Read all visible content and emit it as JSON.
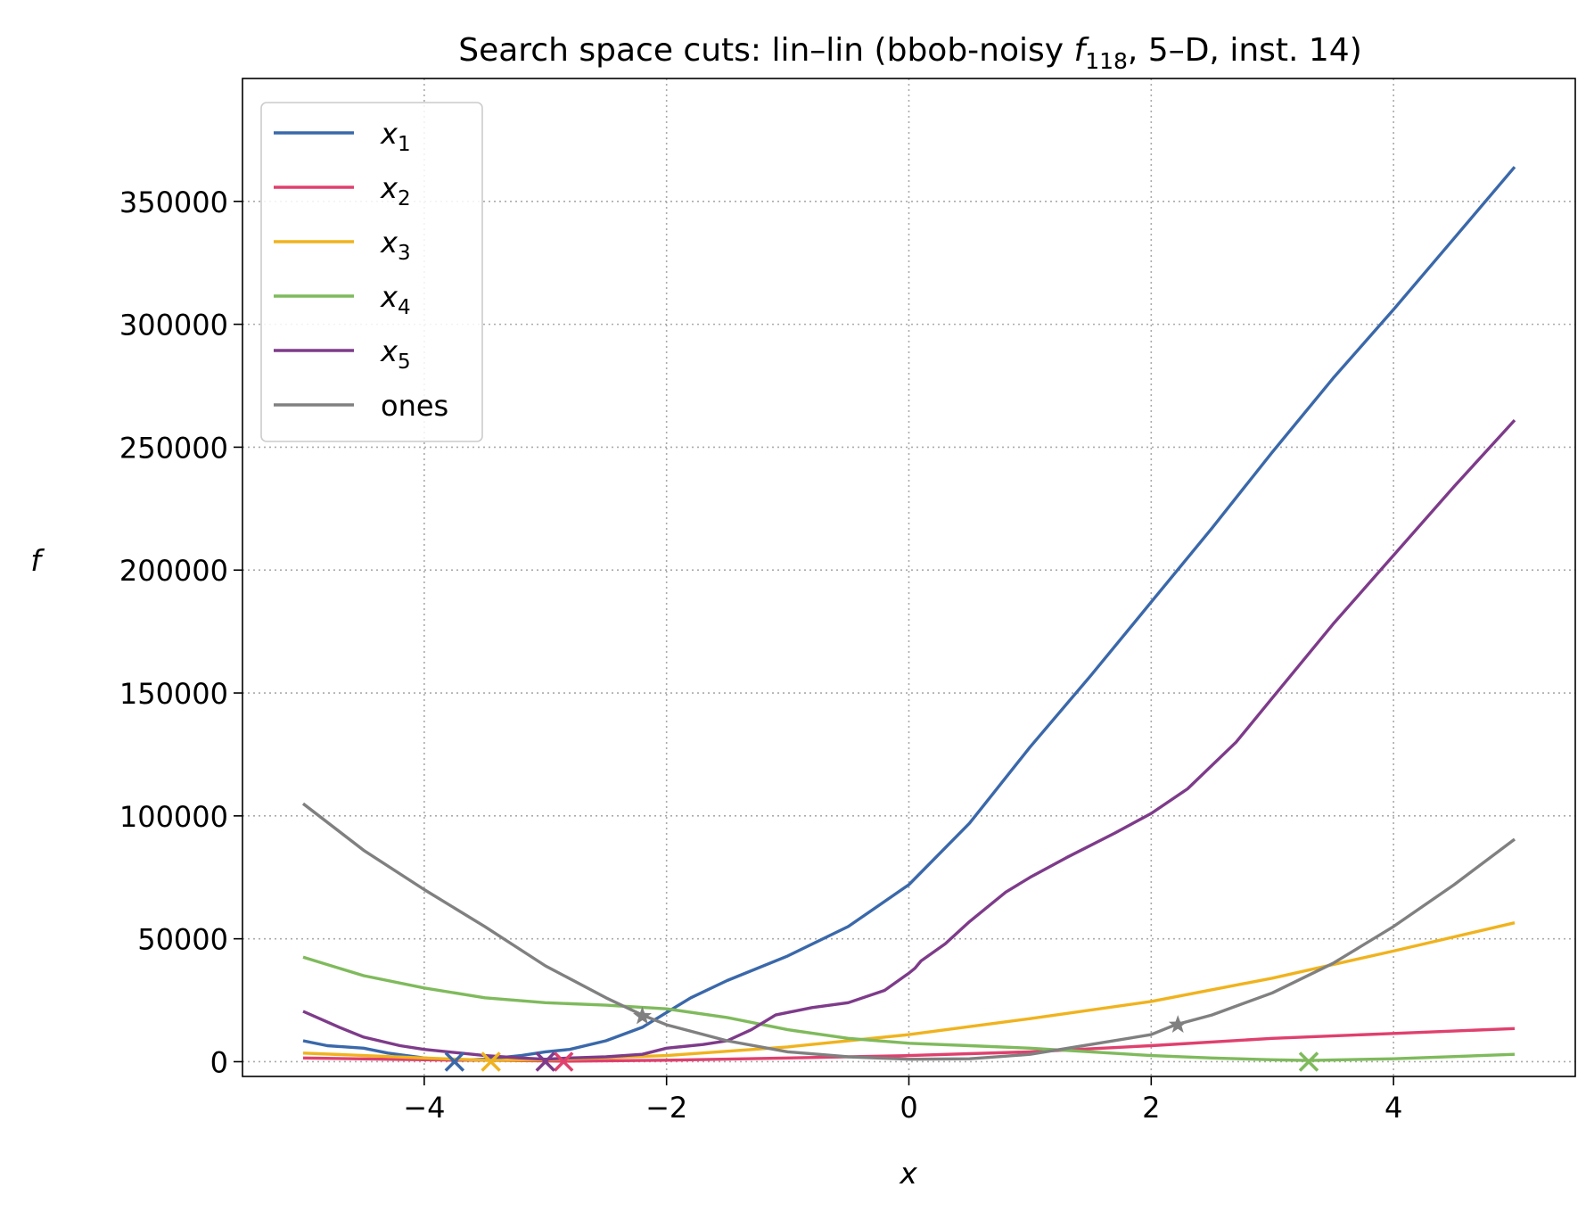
{
  "chart_data": {
    "type": "line",
    "title": {
      "prefix": "Search space cuts: lin–lin (bbob-noisy ",
      "f": "f",
      "sub": "118",
      "suffix": ", 5–D, inst. 14)"
    },
    "xlabel": "x",
    "ylabel": "f",
    "xlim": [
      -5.5,
      5.5
    ],
    "ylim": [
      -6000,
      400000
    ],
    "xticks": [
      -4,
      -2,
      0,
      2,
      4
    ],
    "xtick_labels": [
      "−4",
      "−2",
      "0",
      "2",
      "4"
    ],
    "yticks": [
      0,
      50000,
      100000,
      150000,
      200000,
      250000,
      300000,
      350000
    ],
    "ytick_labels": [
      "0",
      "50000",
      "100000",
      "150000",
      "200000",
      "250000",
      "300000",
      "350000"
    ],
    "grid": true,
    "legend": "upper-left",
    "series": [
      {
        "name": "x",
        "sub": "1",
        "color": "#3a68aa",
        "x": [
          -5,
          -4.8,
          -4.5,
          -4.3,
          -4,
          -3.75,
          -3.5,
          -3.2,
          -3,
          -2.8,
          -2.5,
          -2.2,
          -2,
          -1.8,
          -1.5,
          -1,
          -0.5,
          0,
          0.5,
          1,
          1.5,
          2,
          2.5,
          3,
          3.5,
          4,
          4.5,
          5
        ],
        "y": [
          8500,
          6500,
          5500,
          3500,
          1500,
          500,
          1000,
          2500,
          4000,
          5000,
          8500,
          14000,
          20000,
          26000,
          33000,
          43000,
          55000,
          72000,
          97000,
          128000,
          157000,
          187000,
          217000,
          248000,
          278000,
          306000,
          335000,
          364000
        ],
        "marker_x": -3.75,
        "marker_y": 0,
        "marker": "x"
      },
      {
        "name": "x",
        "sub": "2",
        "color": "#e0406e",
        "x": [
          -5,
          -4,
          -3,
          -2.85,
          -2,
          -1,
          0,
          1,
          2,
          3,
          4,
          5
        ],
        "y": [
          1500,
          800,
          300,
          200,
          600,
          1500,
          2500,
          4000,
          6500,
          9500,
          11500,
          13500
        ],
        "marker_x": -2.85,
        "marker_y": 0,
        "marker": "x"
      },
      {
        "name": "x",
        "sub": "3",
        "color": "#f0b31e",
        "x": [
          -5,
          -4,
          -3.45,
          -3,
          -2,
          -1,
          0,
          1,
          2,
          3,
          4,
          5
        ],
        "y": [
          3500,
          1500,
          500,
          800,
          2500,
          6000,
          11000,
          17500,
          24500,
          34000,
          45000,
          56500
        ],
        "marker_x": -3.45,
        "marker_y": 0,
        "marker": "x"
      },
      {
        "name": "x",
        "sub": "4",
        "color": "#7fba5c",
        "x": [
          -5,
          -4.5,
          -4,
          -3.5,
          -3,
          -2.5,
          -2,
          -1.5,
          -1,
          -0.5,
          0,
          0.5,
          1,
          1.5,
          2,
          2.5,
          3,
          3.3,
          4,
          5
        ],
        "y": [
          42500,
          35000,
          30000,
          26000,
          24000,
          23000,
          21500,
          18000,
          13000,
          9500,
          7500,
          6500,
          5500,
          4000,
          2500,
          1500,
          800,
          500,
          1200,
          3000
        ],
        "marker_x": 3.3,
        "marker_y": 0,
        "marker": "x"
      },
      {
        "name": "x",
        "sub": "5",
        "color": "#7e3b8a",
        "x": [
          -5,
          -4.7,
          -4.5,
          -4.2,
          -4,
          -3.7,
          -3.5,
          -3.2,
          -3,
          -2.8,
          -2.5,
          -2.2,
          -2,
          -1.7,
          -1.5,
          -1.3,
          -1.1,
          -0.8,
          -0.5,
          -0.2,
          0,
          0.05,
          0.1,
          0.3,
          0.5,
          0.8,
          1,
          1.3,
          1.7,
          2,
          2.3,
          2.7,
          3,
          3.5,
          4,
          4.5,
          5
        ],
        "y": [
          20500,
          14000,
          10000,
          6500,
          5000,
          3500,
          2500,
          1500,
          1000,
          1500,
          2000,
          3000,
          5500,
          7000,
          8500,
          13000,
          19000,
          22000,
          24000,
          29000,
          36000,
          38000,
          41000,
          48000,
          57000,
          69000,
          75000,
          83000,
          93000,
          101000,
          111000,
          130000,
          148000,
          178000,
          206000,
          234000,
          261000
        ],
        "marker_x": -3.0,
        "marker_y": 0,
        "marker": "x"
      },
      {
        "name": "ones",
        "sub": "",
        "color": "#808080",
        "x": [
          -5,
          -4.5,
          -4,
          -3.5,
          -3,
          -2.5,
          -2.2,
          -2,
          -1.5,
          -1,
          -0.5,
          0,
          0.5,
          1,
          1.5,
          2,
          2.2,
          2.5,
          3,
          3.5,
          4,
          4.5,
          5
        ],
        "y": [
          105000,
          86000,
          70000,
          55000,
          39000,
          26000,
          19000,
          15000,
          8500,
          4000,
          2000,
          1000,
          1200,
          3000,
          7000,
          11000,
          15000,
          19000,
          28000,
          40000,
          55000,
          72000,
          90500
        ],
        "marker_x": 2.22,
        "marker_y": 15000,
        "marker": "star",
        "extra_marker_x": -2.2,
        "extra_marker_y": 18500
      }
    ]
  }
}
